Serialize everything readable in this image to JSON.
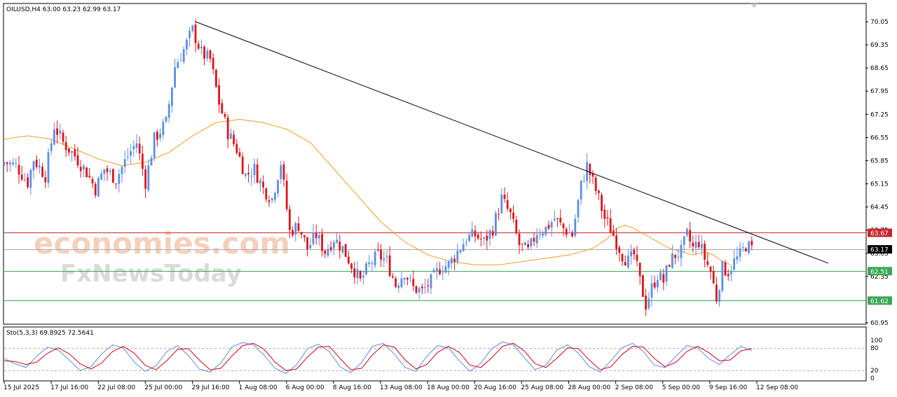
{
  "header": {
    "symbol_info": "OILUSD,H4  63.00 63.23 62.99 63.17",
    "stoch_info": "Sto(5,3,3) 69.8925 72.5641"
  },
  "watermark": {
    "line1": "economies.com",
    "line2": "FxNewsToday"
  },
  "colors": {
    "bull": "#5b8ee6",
    "bear": "#e0141a",
    "ma": "#f39a2a",
    "resistance": "#c9262c",
    "support": "#3aa757",
    "current": "#aaaaaa",
    "trendline": "#000000",
    "stoch_main": "#5b8ee6",
    "stoch_signal": "#d0021b"
  },
  "chart_data": [
    {
      "type": "candlestick",
      "title": "OILUSD,H4",
      "ylim": [
        60.95,
        70.05
      ],
      "y_ticks": [
        "70.05",
        "69.35",
        "68.65",
        "67.95",
        "67.25",
        "66.55",
        "65.85",
        "65.15",
        "64.45",
        "63.75",
        "63.05",
        "62.35",
        "60.95"
      ],
      "x_ticks": [
        "15 Jul 2025",
        "17 Jul 16:00",
        "22 Jul 08:00",
        "25 Jul 00:00",
        "29 Jul 16:00",
        "1 Aug 08:00",
        "6 Aug 00:00",
        "8 Aug 16:00",
        "13 Aug 08:00",
        "18 Aug 00:00",
        "20 Aug 16:00",
        "25 Aug 08:00",
        "28 Aug 00:00",
        "2 Sep 08:00",
        "5 Sep 00:00",
        "9 Sep 16:00",
        "12 Sep 08:00"
      ],
      "close_path": [
        [
          0,
          65.8
        ],
        [
          4,
          65.7
        ],
        [
          8,
          65.2
        ],
        [
          10,
          65.9
        ],
        [
          14,
          65.4
        ],
        [
          17,
          66.9
        ],
        [
          20,
          66.4
        ],
        [
          24,
          66.0
        ],
        [
          28,
          65.5
        ],
        [
          31,
          65.0
        ],
        [
          34,
          65.6
        ],
        [
          38,
          65.3
        ],
        [
          42,
          66.0
        ],
        [
          45,
          66.4
        ],
        [
          48,
          65.2
        ],
        [
          51,
          66.5
        ],
        [
          55,
          67.0
        ],
        [
          58,
          68.7
        ],
        [
          61,
          69.2
        ],
        [
          64,
          69.8
        ],
        [
          67,
          69.1
        ],
        [
          70,
          68.9
        ],
        [
          73,
          67.6
        ],
        [
          76,
          66.7
        ],
        [
          79,
          66.2
        ],
        [
          82,
          65.4
        ],
        [
          85,
          65.6
        ],
        [
          88,
          65.0
        ],
        [
          91,
          64.7
        ],
        [
          94,
          65.8
        ],
        [
          97,
          63.7
        ],
        [
          100,
          63.9
        ],
        [
          103,
          63.2
        ],
        [
          106,
          63.6
        ],
        [
          109,
          63.1
        ],
        [
          112,
          63.5
        ],
        [
          115,
          63.2
        ],
        [
          118,
          62.7
        ],
        [
          121,
          62.2
        ],
        [
          124,
          62.7
        ],
        [
          127,
          63.0
        ],
        [
          130,
          62.8
        ],
        [
          133,
          62.1
        ],
        [
          136,
          62.5
        ],
        [
          139,
          62.0
        ],
        [
          142,
          61.9
        ],
        [
          145,
          62.2
        ],
        [
          148,
          62.6
        ],
        [
          151,
          62.7
        ],
        [
          154,
          63.1
        ],
        [
          157,
          63.5
        ],
        [
          160,
          63.6
        ],
        [
          163,
          63.4
        ],
        [
          166,
          63.8
        ],
        [
          169,
          64.7
        ],
        [
          172,
          64.2
        ],
        [
          175,
          63.3
        ],
        [
          178,
          63.1
        ],
        [
          181,
          63.7
        ],
        [
          184,
          63.8
        ],
        [
          187,
          64.1
        ],
        [
          190,
          63.8
        ],
        [
          193,
          63.6
        ],
        [
          196,
          65.1
        ],
        [
          198,
          65.7
        ],
        [
          200,
          65.2
        ],
        [
          202,
          64.7
        ],
        [
          204,
          64.1
        ],
        [
          206,
          63.8
        ],
        [
          208,
          63.4
        ],
        [
          210,
          63.0
        ],
        [
          212,
          62.8
        ],
        [
          214,
          63.0
        ],
        [
          216,
          62.2
        ],
        [
          218,
          61.5
        ],
        [
          220,
          62.0
        ],
        [
          222,
          62.4
        ],
        [
          224,
          62.2
        ],
        [
          226,
          62.8
        ],
        [
          228,
          63.0
        ],
        [
          230,
          63.1
        ],
        [
          232,
          63.6
        ],
        [
          234,
          63.2
        ],
        [
          236,
          63.4
        ],
        [
          238,
          62.9
        ],
        [
          240,
          62.5
        ],
        [
          242,
          61.7
        ],
        [
          244,
          62.6
        ],
        [
          246,
          62.5
        ],
        [
          248,
          62.8
        ],
        [
          250,
          63.0
        ],
        [
          252,
          63.3
        ],
        [
          254,
          63.17
        ]
      ],
      "ma_path": [
        [
          0,
          66.5
        ],
        [
          8,
          66.6
        ],
        [
          16,
          66.5
        ],
        [
          24,
          66.2
        ],
        [
          32,
          65.9
        ],
        [
          40,
          65.7
        ],
        [
          48,
          65.8
        ],
        [
          56,
          66.1
        ],
        [
          64,
          66.6
        ],
        [
          72,
          67.0
        ],
        [
          80,
          67.1
        ],
        [
          88,
          67.0
        ],
        [
          96,
          66.8
        ],
        [
          104,
          66.4
        ],
        [
          112,
          65.6
        ],
        [
          120,
          64.8
        ],
        [
          128,
          64.0
        ],
        [
          136,
          63.4
        ],
        [
          144,
          63.0
        ],
        [
          152,
          62.8
        ],
        [
          160,
          62.7
        ],
        [
          168,
          62.7
        ],
        [
          176,
          62.8
        ],
        [
          184,
          62.9
        ],
        [
          192,
          63.0
        ],
        [
          200,
          63.2
        ],
        [
          205,
          63.5
        ],
        [
          208,
          63.8
        ],
        [
          211,
          63.9
        ],
        [
          214,
          63.8
        ],
        [
          218,
          63.6
        ],
        [
          222,
          63.4
        ],
        [
          226,
          63.2
        ],
        [
          230,
          63.1
        ],
        [
          234,
          63.0
        ],
        [
          238,
          63.1
        ],
        [
          241,
          63.0
        ],
        [
          244,
          62.8
        ],
        [
          247,
          62.7
        ]
      ],
      "trendline": {
        "from": [
          65,
          70.05
        ],
        "to": [
          280,
          62.75
        ]
      },
      "levels": {
        "resistance": 63.67,
        "current": 63.17,
        "support1": 62.51,
        "support2": 61.62
      },
      "level_labels": {
        "resistance": "63.67",
        "current": "63.17",
        "support1": "62.51",
        "support2": "61.62"
      }
    },
    {
      "type": "line",
      "title": "Sto(5,3,3)",
      "ylim": [
        0,
        100
      ],
      "y_ticks": [
        "100",
        "80",
        "20",
        "0"
      ],
      "levels": [
        80,
        20
      ],
      "series": [
        {
          "name": "main",
          "values": [
            52,
            38,
            28,
            58,
            82,
            74,
            48,
            20,
            30,
            64,
            88,
            80,
            42,
            18,
            32,
            70,
            86,
            60,
            24,
            16,
            40,
            82,
            94,
            88,
            60,
            26,
            12,
            36,
            78,
            90,
            70,
            30,
            14,
            42,
            84,
            92,
            64,
            28,
            18,
            58,
            86,
            80,
            46,
            18,
            40,
            78,
            96,
            88,
            54,
            22,
            34,
            74,
            88,
            66,
            30,
            16,
            46,
            80,
            92,
            70,
            34,
            28,
            58,
            86,
            80,
            52,
            36,
            62,
            84,
            72
          ]
        },
        {
          "name": "signal",
          "values": [
            46,
            44,
            36,
            42,
            66,
            80,
            64,
            38,
            24,
            40,
            70,
            84,
            66,
            34,
            22,
            46,
            76,
            78,
            48,
            22,
            26,
            58,
            86,
            92,
            76,
            42,
            20,
            24,
            56,
            82,
            84,
            52,
            22,
            26,
            62,
            88,
            82,
            48,
            24,
            36,
            68,
            84,
            68,
            34,
            28,
            54,
            84,
            92,
            72,
            38,
            28,
            52,
            80,
            78,
            48,
            22,
            30,
            62,
            84,
            82,
            52,
            30,
            42,
            70,
            84,
            68,
            46,
            48,
            72,
            78
          ]
        }
      ]
    }
  ]
}
